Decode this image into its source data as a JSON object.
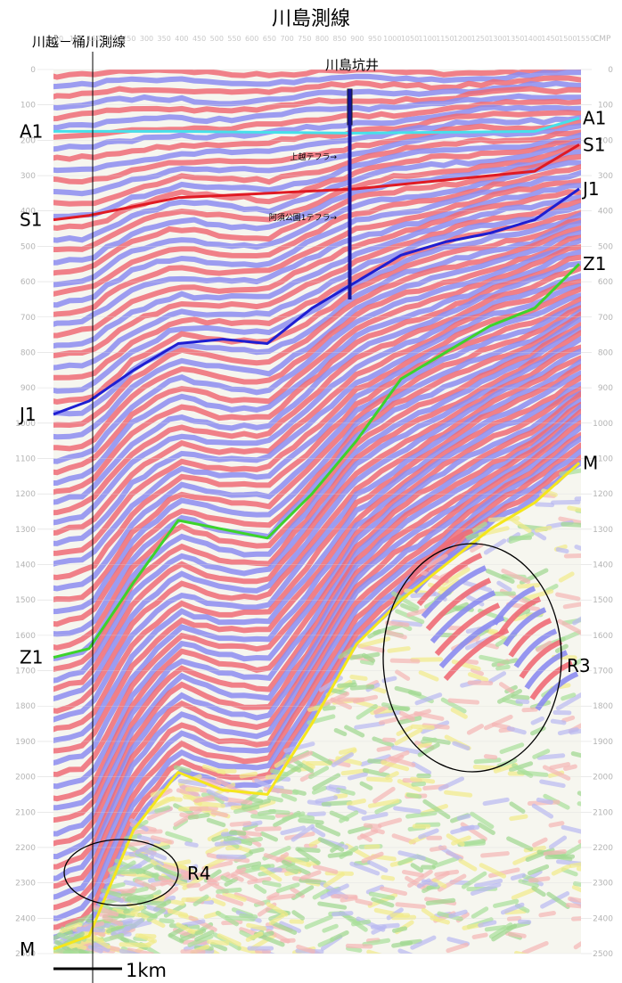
{
  "title": "川島測線",
  "crossing_line_label": "川越－桶川測線",
  "well_label": "川島坑井",
  "well_markers": [
    {
      "label": "上越テフラ",
      "depth": 245
    },
    {
      "label": "阿須公園1テフラ",
      "depth": 415
    }
  ],
  "horizons": [
    {
      "label_left": "A1",
      "label_right": "A1",
      "color": "#46e0ea",
      "points": [
        [
          60,
          70
        ],
        [
          200,
          70
        ],
        [
          400,
          72
        ],
        [
          600,
          70
        ],
        [
          650,
          55
        ]
      ]
    },
    {
      "label_left": "S1",
      "label_right": "S1",
      "color": "#e01a23",
      "points": [
        [
          60,
          170
        ],
        [
          100,
          165
        ],
        [
          200,
          145
        ],
        [
          300,
          140
        ],
        [
          400,
          135
        ],
        [
          500,
          125
        ],
        [
          600,
          115
        ],
        [
          650,
          85
        ]
      ]
    },
    {
      "label_left": "J1",
      "label_right": "J1",
      "color": "#1e1ed2",
      "points": [
        [
          60,
          390
        ],
        [
          100,
          375
        ],
        [
          150,
          340
        ],
        [
          200,
          310
        ],
        [
          250,
          305
        ],
        [
          300,
          310
        ],
        [
          350,
          270
        ],
        [
          400,
          240
        ],
        [
          450,
          210
        ],
        [
          500,
          195
        ],
        [
          550,
          185
        ],
        [
          600,
          170
        ],
        [
          650,
          135
        ]
      ]
    },
    {
      "label_left": "Z1",
      "label_right": "Z1",
      "color": "#3cd42a",
      "points": [
        [
          60,
          665
        ],
        [
          100,
          655
        ],
        [
          150,
          580
        ],
        [
          200,
          510
        ],
        [
          250,
          520
        ],
        [
          300,
          530
        ],
        [
          350,
          480
        ],
        [
          400,
          420
        ],
        [
          450,
          350
        ],
        [
          500,
          320
        ],
        [
          550,
          290
        ],
        [
          600,
          270
        ],
        [
          650,
          220
        ]
      ]
    },
    {
      "label_left": "M",
      "label_right": "M",
      "color": "#f5e61c",
      "points": [
        [
          60,
          995
        ],
        [
          100,
          980
        ],
        [
          150,
          860
        ],
        [
          200,
          795
        ],
        [
          250,
          815
        ],
        [
          300,
          820
        ],
        [
          350,
          740
        ],
        [
          400,
          650
        ],
        [
          450,
          600
        ],
        [
          500,
          560
        ],
        [
          550,
          520
        ],
        [
          600,
          490
        ],
        [
          650,
          445
        ]
      ]
    }
  ],
  "regions": [
    {
      "label": "R3"
    },
    {
      "label": "R4"
    }
  ],
  "axis": {
    "left_depth_ticks": [
      "0",
      "100",
      "200",
      "300",
      "400",
      "500",
      "600",
      "700",
      "800",
      "900",
      "1000",
      "1100",
      "1200",
      "1300",
      "1400",
      "1500",
      "1600",
      "1700",
      "1800",
      "1900",
      "2000",
      "2100",
      "2200",
      "2300",
      "2400",
      "2500"
    ],
    "right_depth_ticks": [
      "0",
      "100",
      "200",
      "300",
      "400",
      "500",
      "600",
      "700",
      "800",
      "900",
      "1000",
      "1100",
      "1200",
      "1300",
      "1400",
      "1500",
      "1600",
      "1700",
      "1800",
      "1900",
      "2000",
      "2100",
      "2200",
      "2300",
      "2400",
      "2500"
    ],
    "cmp_ticks": [
      "50",
      "100",
      "150",
      "200",
      "250",
      "300",
      "350",
      "400",
      "450",
      "500",
      "550",
      "600",
      "650",
      "700",
      "750",
      "800",
      "850",
      "900",
      "950",
      "1000",
      "1050",
      "1100",
      "1150",
      "1200",
      "1250",
      "1300",
      "1350",
      "1400",
      "1450",
      "1500",
      "1550"
    ],
    "cmp_label": "CMP"
  },
  "scale_bar_label": "1km"
}
